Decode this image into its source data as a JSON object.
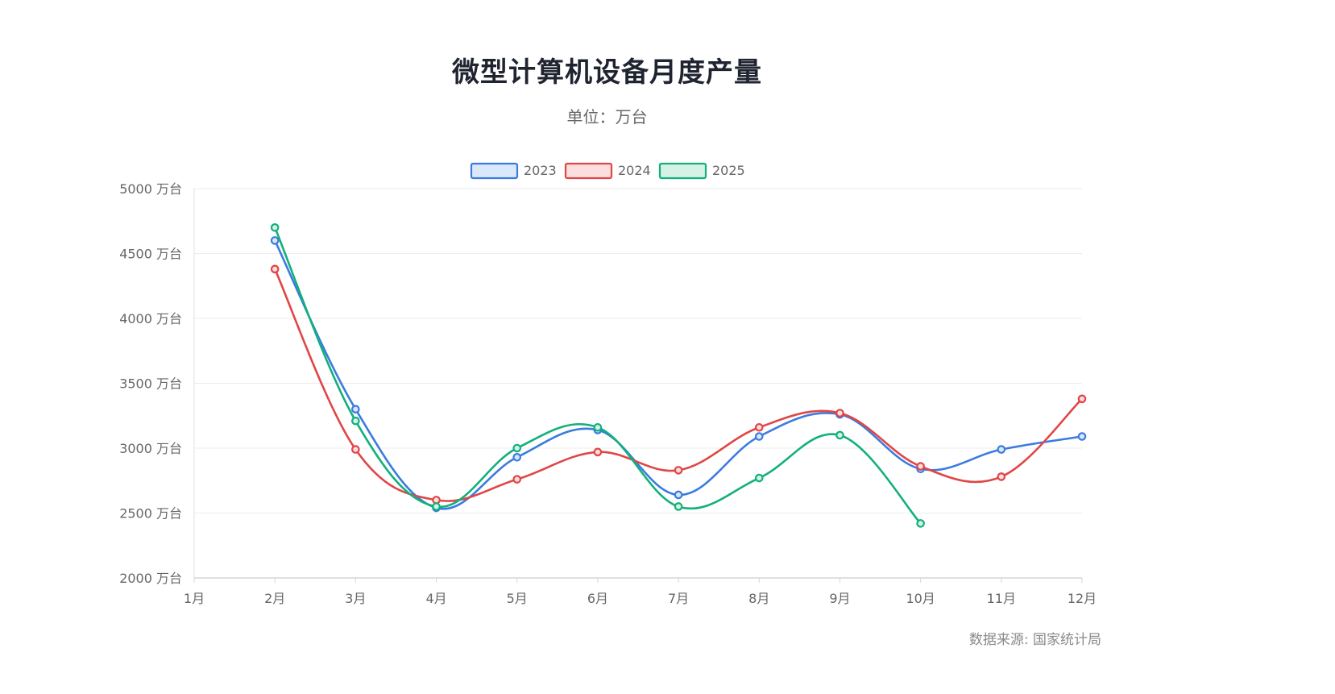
{
  "header": {
    "title": "微型计算机设备月度产量",
    "subtitle": "单位：万台"
  },
  "footer": {
    "source": "数据来源: 国家统计局"
  },
  "chart_data": {
    "type": "line",
    "title": "微型计算机设备月度产量",
    "subtitle": "单位：万台",
    "categories": [
      "1月",
      "2月",
      "3月",
      "4月",
      "5月",
      "6月",
      "7月",
      "8月",
      "9月",
      "10月",
      "11月",
      "12月"
    ],
    "y_tick_labels": [
      "2000 万台",
      "2500 万台",
      "3000 万台",
      "3500 万台",
      "4000 万台",
      "4500 万台",
      "5000 万台"
    ],
    "ylim": [
      2000,
      5000
    ],
    "y_step": 500,
    "grid": true,
    "legend_position": "top-center",
    "curve": "smooth",
    "series": [
      {
        "name": "2023",
        "color": "#3b7be0",
        "fill": "#dbe8fb",
        "values": [
          null,
          4600,
          3300,
          2540,
          2930,
          3140,
          2640,
          3090,
          3260,
          2840,
          2990,
          3090
        ]
      },
      {
        "name": "2024",
        "color": "#e04646",
        "fill": "#fbdede",
        "values": [
          null,
          4380,
          2990,
          2600,
          2760,
          2970,
          2830,
          3160,
          3270,
          2860,
          2780,
          3380
        ]
      },
      {
        "name": "2025",
        "color": "#12b07a",
        "fill": "#d6f2e7",
        "values": [
          null,
          4700,
          3210,
          2550,
          3000,
          3160,
          2550,
          2770,
          3100,
          2420,
          null,
          null
        ]
      }
    ]
  }
}
